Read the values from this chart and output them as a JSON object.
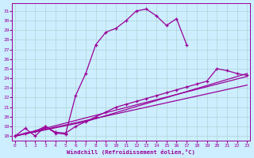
{
  "bg_color": "#cceeff",
  "line_color": "#990099",
  "grid_color": "#aacccc",
  "xlabel": "Windchill (Refroidissement éolien,°C)",
  "xlabel_color": "#990099",
  "xticks": [
    0,
    1,
    2,
    3,
    4,
    5,
    6,
    7,
    8,
    9,
    10,
    11,
    12,
    13,
    14,
    15,
    16,
    17,
    18,
    19,
    20,
    21,
    22,
    23
  ],
  "yticks": [
    18,
    19,
    20,
    21,
    22,
    23,
    24,
    25,
    26,
    27,
    28,
    29,
    30,
    31
  ],
  "xlim": [
    -0.3,
    23.3
  ],
  "ylim": [
    17.5,
    31.8
  ],
  "line1_x": [
    0,
    1,
    2,
    3,
    4,
    5,
    6,
    7,
    8,
    9,
    10,
    11,
    12,
    13,
    14,
    15,
    16,
    17
  ],
  "line1_y": [
    18.0,
    18.8,
    18.0,
    19.0,
    18.3,
    18.2,
    22.2,
    24.5,
    27.5,
    28.8,
    29.2,
    30.0,
    31.0,
    31.2,
    30.5,
    29.5,
    30.2,
    27.5
  ],
  "line2_x": [
    0,
    1,
    2,
    3,
    4,
    5,
    6,
    7,
    8,
    9,
    10,
    11,
    12,
    13,
    14,
    15,
    16,
    17,
    18,
    19,
    20,
    21,
    22,
    23
  ],
  "line2_y": [
    18.0,
    18.3,
    18.5,
    19.0,
    18.4,
    18.3,
    19.0,
    19.5,
    20.0,
    20.5,
    21.0,
    21.3,
    21.6,
    21.9,
    22.2,
    22.5,
    22.8,
    23.1,
    23.4,
    23.7,
    25.0,
    24.8,
    24.5,
    24.3
  ],
  "line3_x": [
    0,
    23
  ],
  "line3_y": [
    18.0,
    23.3
  ],
  "line4_x": [
    0,
    23
  ],
  "line4_y": [
    18.0,
    24.2
  ],
  "line5_x": [
    0,
    7,
    23
  ],
  "line5_y": [
    18.0,
    19.5,
    24.5
  ]
}
